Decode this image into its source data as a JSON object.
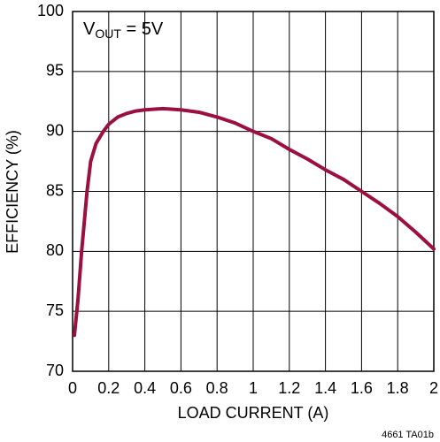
{
  "chart_data": {
    "type": "line",
    "xlabel": "LOAD CURRENT (A)",
    "ylabel": "EFFICIENCY (%)",
    "annotation": {
      "main": "V",
      "sub": "OUT",
      "rest": " = 5V"
    },
    "footnote": "4661 TA01b",
    "x": [
      0.01,
      0.03,
      0.05,
      0.08,
      0.1,
      0.13,
      0.17,
      0.2,
      0.25,
      0.3,
      0.35,
      0.4,
      0.5,
      0.6,
      0.7,
      0.8,
      0.9,
      1.0,
      1.1,
      1.2,
      1.3,
      1.4,
      1.5,
      1.6,
      1.7,
      1.8,
      1.9,
      2.0
    ],
    "series": [
      {
        "name": "Efficiency",
        "color": "#9b1040",
        "values": [
          73,
          76,
          80,
          85,
          87.5,
          89,
          90,
          90.6,
          91.2,
          91.5,
          91.7,
          91.8,
          91.9,
          91.8,
          91.6,
          91.2,
          90.7,
          90.0,
          89.4,
          88.5,
          87.7,
          86.8,
          86.0,
          85.0,
          84.0,
          82.9,
          81.6,
          80.2
        ]
      }
    ],
    "xlim": [
      0,
      2
    ],
    "ylim": [
      70,
      100
    ],
    "xticks": [
      0,
      0.2,
      0.4,
      0.6,
      0.8,
      1,
      1.2,
      1.4,
      1.6,
      1.8,
      2
    ],
    "yticks": [
      70,
      75,
      80,
      85,
      90,
      95,
      100
    ],
    "grid": true
  }
}
